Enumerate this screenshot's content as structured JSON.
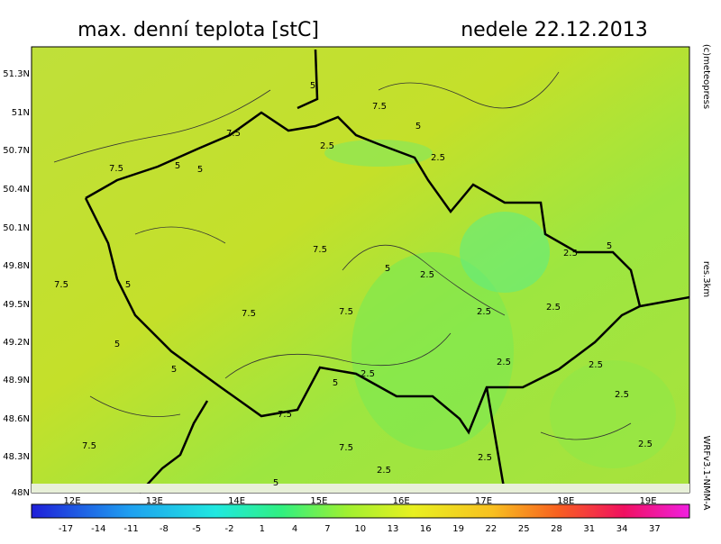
{
  "header": {
    "title": "max. denní teplota [stC]",
    "date": "nedele 22.12.2013"
  },
  "map": {
    "lat_ticks": [
      "51.3N",
      "51N",
      "50.7N",
      "50.4N",
      "50.1N",
      "49.8N",
      "49.5N",
      "49.2N",
      "48.9N",
      "48.6N",
      "48.3N",
      "48N"
    ],
    "lon_ticks": [
      "12E",
      "13E",
      "14E",
      "15E",
      "16E",
      "17E",
      "18E",
      "19E"
    ],
    "contour_labels": [
      "5",
      "7.5",
      "5",
      "7.5",
      "5",
      "5",
      "2.5",
      "2.5",
      "7.5",
      "5",
      "7.5",
      "2.5",
      "5",
      "7.5",
      "7.5",
      "7.5",
      "2.5",
      "2.5",
      "2.5",
      "5",
      "5",
      "5",
      "2.5",
      "5",
      "2.5",
      "2.5",
      "2.5",
      "2.5",
      "2.5",
      "2.5",
      "7.5",
      "7.5",
      "7.5",
      "5"
    ]
  },
  "colorbar": {
    "ticks": [
      -17,
      -14,
      -11,
      -8,
      -5,
      -2,
      1,
      4,
      7,
      10,
      13,
      16,
      19,
      22,
      25,
      28,
      31,
      34,
      37
    ]
  },
  "side": {
    "credit": "(c)meteopress",
    "resolution": "res.3km",
    "model": "WRFv3.1-NMM-A"
  }
}
